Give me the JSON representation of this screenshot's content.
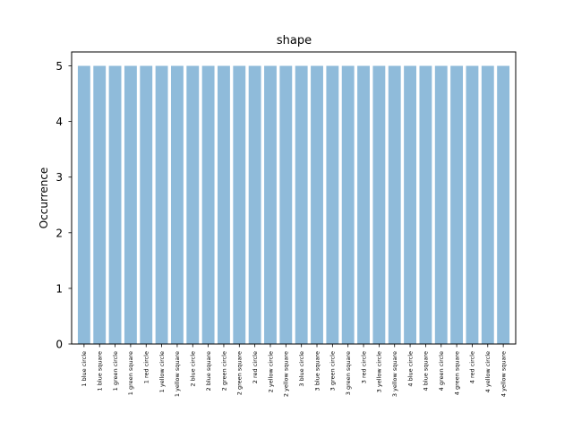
{
  "chart_data": {
    "type": "bar",
    "title": "shape",
    "xlabel": "",
    "ylabel": "Occurrence",
    "ylim": [
      0,
      5.25
    ],
    "yticks": [
      "0",
      "1",
      "2",
      "3",
      "4",
      "5"
    ],
    "bar_color": "#8fbbda",
    "categories": [
      "1 blue circle",
      "1 blue square",
      "1 green circle",
      "1 green square",
      "1 red circle",
      "1 yellow circle",
      "1 yellow square",
      "2 blue circle",
      "2 blue square",
      "2 green circle",
      "2 green square",
      "2 red circle",
      "2 yellow circle",
      "2 yellow square",
      "3 blue circle",
      "3 blue square",
      "3 green circle",
      "3 green square",
      "3 red circle",
      "3 yellow circle",
      "3 yellow square",
      "4 blue circle",
      "4 blue square",
      "4 green circle",
      "4 green square",
      "4 red circle",
      "4 yellow circle",
      "4 yellow square"
    ],
    "values": [
      5,
      5,
      5,
      5,
      5,
      5,
      5,
      5,
      5,
      5,
      5,
      5,
      5,
      5,
      5,
      5,
      5,
      5,
      5,
      5,
      5,
      5,
      5,
      5,
      5,
      5,
      5,
      5
    ]
  }
}
